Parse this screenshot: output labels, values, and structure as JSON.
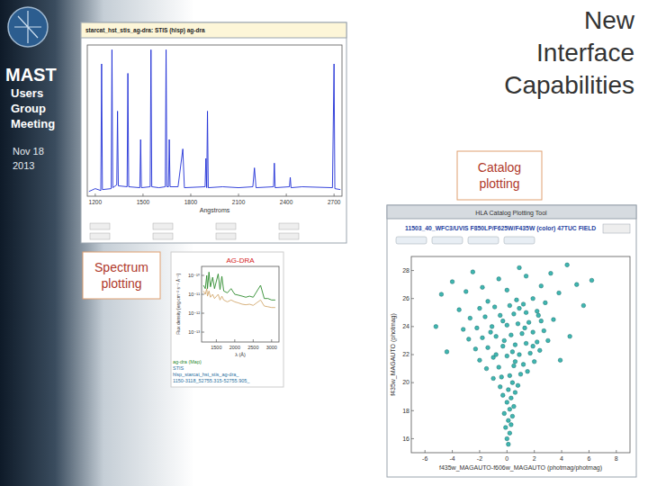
{
  "slide": {
    "title": "New Interface Capabilities",
    "logo": "MAST",
    "subtitle": [
      "Users",
      "Group",
      "Meeting"
    ],
    "date": [
      "Nov 18",
      "2013"
    ],
    "labels": {
      "spectrum": "Spectrum plotting",
      "catalog": "Catalog plotting"
    }
  },
  "chart_data": [
    {
      "type": "line",
      "title": "starcat_hst_stis_ag-dra: STIS (hlsp) ag-dra",
      "x_label": "Angstroms",
      "color": "#1f2fd6",
      "tick_labels": "x",
      "xlim": [
        1150,
        2750
      ],
      "ylim": [
        0,
        16
      ],
      "xticks": [
        1200,
        1500,
        1800,
        2100,
        2400,
        2700
      ],
      "x": [
        1160,
        1200,
        1235,
        1240,
        1245,
        1300,
        1305,
        1310,
        1335,
        1340,
        1345,
        1400,
        1405,
        1410,
        1480,
        1485,
        1490,
        1545,
        1550,
        1555,
        1600,
        1640,
        1645,
        1650,
        1660,
        1665,
        1670,
        1720,
        1750,
        1760,
        1890,
        1895,
        1900,
        1905,
        1910,
        2000,
        2100,
        2190,
        2200,
        2210,
        2320,
        2325,
        2330,
        2420,
        2425,
        2430,
        2500,
        2690,
        2700,
        2705,
        2740
      ],
      "values": [
        0.5,
        0.8,
        0.6,
        14,
        0.7,
        0.8,
        15.5,
        0.9,
        1.2,
        9,
        1.1,
        1.0,
        13,
        1.0,
        0.9,
        6,
        0.9,
        1.0,
        15.5,
        1.0,
        0.9,
        1.0,
        15.5,
        1.0,
        1.0,
        6,
        1.0,
        1.0,
        5,
        0.9,
        1.0,
        4,
        0.9,
        9,
        0.9,
        1.0,
        0.9,
        1.0,
        3,
        0.9,
        1.0,
        3.5,
        0.9,
        1.0,
        2,
        0.9,
        1.0,
        0.9,
        14,
        0.8,
        0.7
      ]
    },
    {
      "type": "line",
      "title": "AG-DRA",
      "x_label": "λ (Å)",
      "y_label": "Flux density [erg cm⁻² s⁻¹ Å⁻¹]",
      "log": "y",
      "xlim": [
        1100,
        3200
      ],
      "ylim": [
        3e-14,
        3e-10
      ],
      "xticks": [
        1500,
        2000,
        2500,
        3000
      ],
      "yticks": [
        {
          "value": 1e-10,
          "label": "10⁻¹⁰"
        },
        {
          "value": 1e-11,
          "label": "10⁻¹¹"
        },
        {
          "value": 1e-12,
          "label": "10⁻¹²"
        },
        {
          "value": 1e-13,
          "label": "10⁻¹³"
        }
      ],
      "annotations": [
        "ag-dra (Map)",
        "STIS",
        "hlsp_starcat_hst_stis_ag-dra_",
        "1150-3118_52755.315-52755.905_"
      ],
      "x": [
        1150,
        1200,
        1240,
        1260,
        1300,
        1340,
        1400,
        1450,
        1550,
        1600,
        1650,
        1700,
        1800,
        1900,
        2000,
        2100,
        2200,
        2300,
        2400,
        2500,
        2700,
        2800,
        2900,
        3000,
        3100
      ],
      "series": [
        {
          "color": "#d2a86e",
          "values": [
            1.5e-11,
            1e-11,
            2e-11,
            8e-12,
            1.5e-11,
            7e-12,
            1e-11,
            6e-12,
            1e-11,
            5e-12,
            8e-12,
            5e-12,
            4e-12,
            5e-12,
            4e-12,
            3.5e-12,
            3e-12,
            2.8e-12,
            3e-12,
            2.6e-12,
            5e-12,
            2.4e-12,
            2.2e-12,
            2e-12,
            2e-12
          ]
        },
        {
          "color": "#2e8b2e",
          "values": [
            3e-11,
            2e-11,
            1e-10,
            2e-11,
            1.5e-10,
            2.5e-11,
            8e-11,
            2e-11,
            1.2e-10,
            1.8e-11,
            9e-11,
            1.5e-11,
            1.2e-11,
            2e-11,
            1e-11,
            9e-12,
            8e-12,
            7e-12,
            8e-12,
            7e-12,
            3e-11,
            6e-12,
            6e-12,
            5e-12,
            5e-12
          ]
        }
      ]
    },
    {
      "type": "scatter",
      "window_title": "HLA Catalog Plotting Tool",
      "title": "11503_40_WFC3/UVIS F850LP/F625W/F435W (color) 47TUC FIELD",
      "x_label": "f435w_MAGAUTO-f606w_MAGAUTO (photmag/photmag)",
      "y_label": "f435w_MAGAUTO (photmag)",
      "marker": "circle",
      "color": "#3fb6b0",
      "xlim": [
        -7,
        9
      ],
      "ylim": [
        15,
        29
      ],
      "xticks": [
        -6,
        -4,
        -2,
        0,
        2,
        4,
        6,
        8
      ],
      "yticks": [
        16,
        18,
        20,
        22,
        24,
        26,
        28
      ],
      "x": [
        0.1,
        0.0,
        0.2,
        -0.1,
        0.3,
        0.1,
        0.4,
        -0.2,
        0.2,
        0.5,
        0.0,
        0.3,
        -0.3,
        0.6,
        0.1,
        -0.5,
        0.8,
        0.4,
        -1.0,
        -0.4,
        0.2,
        1.0,
        1.5,
        -1.5,
        -0.6,
        0.5,
        1.2,
        2.0,
        -2.0,
        -1.0,
        0.0,
        0.9,
        1.7,
        2.4,
        -2.3,
        -1.4,
        -0.3,
        0.6,
        1.4,
        2.2,
        3.0,
        -2.8,
        -1.8,
        -0.8,
        0.3,
        1.1,
        1.9,
        2.7,
        -3.2,
        -2.2,
        -1.1,
        0.0,
        0.8,
        1.6,
        2.5,
        3.4,
        -2.7,
        -1.6,
        -0.5,
        0.5,
        1.4,
        2.2,
        -3.5,
        -2.0,
        -0.9,
        0.2,
        1.2,
        2.8,
        -1.4,
        0.7,
        1.9,
        -4.8,
        -3.0,
        -1.8,
        0.0,
        2.5,
        3.8,
        5.1,
        -4.0,
        -0.6,
        1.4,
        3.2,
        6.2,
        -2.5,
        0.9,
        4.4,
        -5.2,
        4.6,
        5.6,
        -4.4,
        3.9,
        0.4,
        -0.2,
        1.3,
        -0.3,
        0.9,
        -1.2,
        1.9,
        0.6,
        -0.8,
        2.3
      ],
      "values": [
        15.6,
        16.0,
        16.4,
        16.8,
        17.0,
        17.3,
        17.6,
        17.8,
        18.1,
        18.3,
        18.6,
        18.9,
        19.1,
        19.3,
        19.5,
        19.7,
        19.8,
        20.0,
        20.3,
        20.4,
        20.5,
        20.6,
        20.8,
        21.0,
        21.1,
        21.2,
        21.3,
        21.5,
        21.6,
        21.8,
        21.9,
        22.0,
        22.1,
        22.3,
        22.4,
        22.5,
        22.6,
        22.7,
        22.8,
        22.9,
        23.0,
        23.1,
        23.2,
        23.3,
        23.4,
        23.5,
        23.6,
        23.7,
        23.8,
        23.9,
        24.0,
        24.1,
        24.2,
        24.3,
        24.4,
        24.5,
        24.6,
        24.7,
        24.8,
        24.9,
        25.0,
        25.1,
        25.2,
        25.3,
        25.4,
        25.5,
        25.6,
        25.7,
        25.8,
        25.9,
        26.0,
        26.3,
        26.5,
        26.8,
        26.6,
        26.9,
        26.4,
        27.0,
        27.2,
        27.4,
        27.6,
        27.8,
        27.3,
        27.9,
        28.2,
        28.4,
        24.0,
        23.3,
        25.5,
        22.2,
        21.6,
        22.2,
        23.0,
        23.9,
        24.4,
        25.3,
        23.6,
        22.6,
        21.5,
        22.0,
        24.8
      ]
    }
  ]
}
